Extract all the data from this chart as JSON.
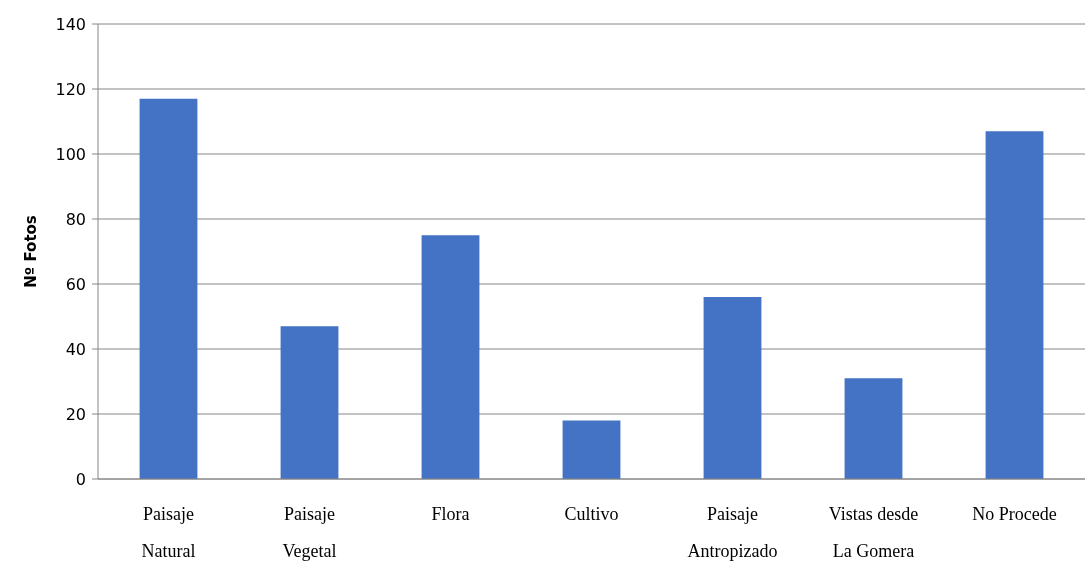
{
  "chart_data": {
    "type": "bar",
    "ylabel": "Nº Fotos",
    "categories": [
      "Paisaje Natural",
      "Paisaje Vegetal",
      "Flora",
      "Cultivo",
      "Paisaje Antropizado",
      "Vistas desde La Gomera",
      "No Procede"
    ],
    "values": [
      117,
      47,
      75,
      18,
      56,
      31,
      107
    ],
    "color": "#4472c4",
    "ylim": [
      0,
      140
    ],
    "yticks": [
      0,
      20,
      40,
      60,
      80,
      100,
      120,
      140
    ],
    "grid": "y"
  }
}
